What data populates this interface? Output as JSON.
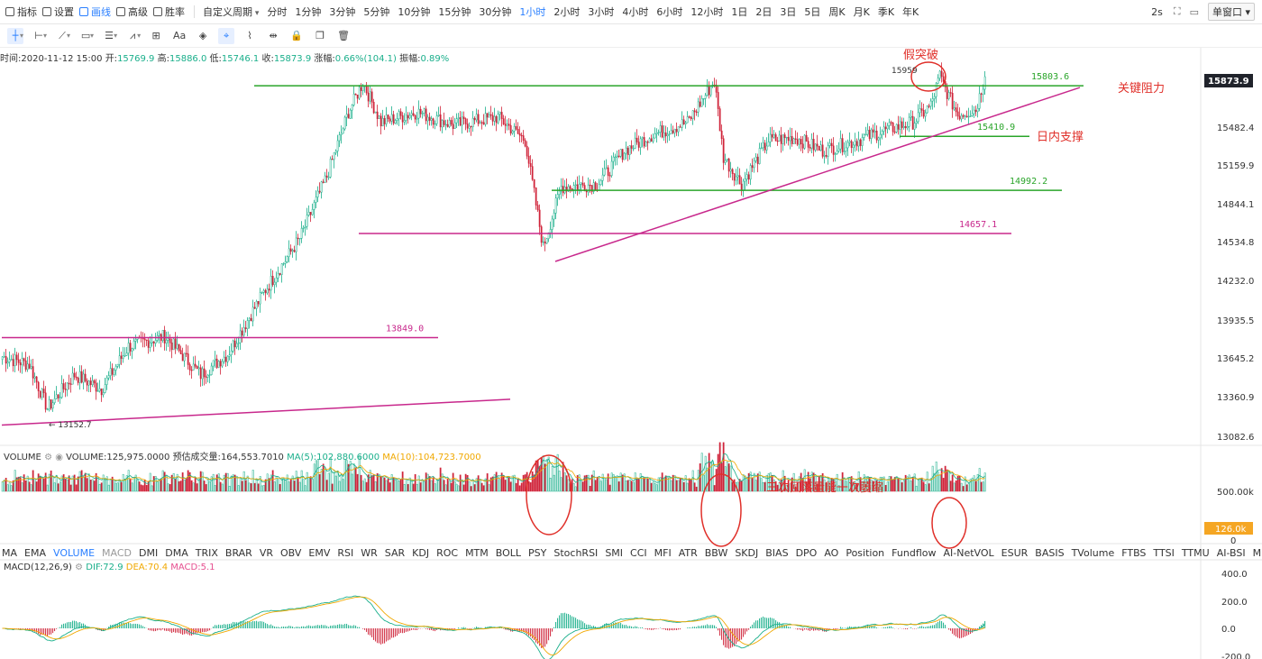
{
  "toolbar": {
    "items": [
      {
        "label": "指标",
        "icon": "indicator-icon"
      },
      {
        "label": "设置",
        "icon": "gear-icon"
      },
      {
        "label": "画线",
        "icon": "pen-icon",
        "active": true
      },
      {
        "label": "高级",
        "icon": "advanced-icon"
      },
      {
        "label": "胜率",
        "icon": "win-rate-icon"
      }
    ],
    "custom_period": "自定义周期",
    "periods": [
      "分时",
      "1分钟",
      "3分钟",
      "5分钟",
      "10分钟",
      "15分钟",
      "30分钟",
      "1小时",
      "2小时",
      "3小时",
      "4小时",
      "6小时",
      "12小时",
      "1日",
      "2日",
      "3日",
      "5日",
      "周K",
      "月K",
      "季K",
      "年K"
    ],
    "active_period": "1小时",
    "refresh": "2s",
    "window": "单窗口"
  },
  "drawing_tools": [
    "crosshair-icon",
    "horizontal-line-icon",
    "trend-line-icon",
    "rectangle-icon",
    "parallel-channel-icon",
    "fib-icon",
    "grid-tool-icon",
    "text-tool-icon",
    "fill-icon",
    "magnet-icon",
    "ruler-icon",
    "measure-icon",
    "lock-icon",
    "copy-icon",
    "delete-icon"
  ],
  "drawing_text": "Aa",
  "ohlc": {
    "time_label": "时间:",
    "time": "2020-11-12 15:00",
    "open_label": "开:",
    "open": "15769.9",
    "high_label": "高:",
    "high": "15886.0",
    "low_label": "低:",
    "low": "15746.1",
    "close_label": "收:",
    "close": "15873.9",
    "change_label": "涨幅:",
    "change": "0.66%(104.1)",
    "amp_label": "振幅:",
    "amp": "0.89%"
  },
  "annotations": {
    "false_break": "假突破",
    "key_resist": "关键阻力",
    "intraday_support": "日内支撑",
    "volume_note": "三次回落量能一次萎缩",
    "hi_label": "15959",
    "lo_label": "← 13152.7"
  },
  "levels": [
    {
      "value": "15803.6",
      "color": "#2aa52a"
    },
    {
      "value": "15410.9",
      "color": "#2aa52a"
    },
    {
      "value": "14992.2",
      "color": "#2aa52a"
    },
    {
      "value": "14657.1",
      "color": "#c8288c"
    },
    {
      "value": "13849.0",
      "color": "#c8288c"
    }
  ],
  "price_axis": [
    "15873.9",
    "15482.4",
    "15159.9",
    "14844.1",
    "14534.8",
    "14232.0",
    "13935.5",
    "13645.2",
    "13360.9",
    "13082.6"
  ],
  "last_price": "15873.9",
  "volume": {
    "title": "VOLUME",
    "volume_label": "VOLUME:",
    "volume": "125,975.0000",
    "est_label": "预估成交量:",
    "est": "164,553.7010",
    "ma5_label": "MA(5):",
    "ma5": "102,880.6000",
    "ma10_label": "MA(10):",
    "ma10": "104,723.7000",
    "axis": [
      "500.00k",
      "0"
    ],
    "last": "126.0k"
  },
  "indicators": [
    "MA",
    "EMA",
    "VOLUME",
    "MACD",
    "DMI",
    "DMA",
    "TRIX",
    "BRAR",
    "VR",
    "OBV",
    "EMV",
    "RSI",
    "WR",
    "SAR",
    "KDJ",
    "ROC",
    "MTM",
    "BOLL",
    "PSY",
    "StochRSI",
    "SMI",
    "CCI",
    "MFI",
    "ATR",
    "BBW",
    "SKDJ",
    "BIAS",
    "DPO",
    "AO",
    "Position",
    "Fundflow",
    "AI-NetVOL",
    "ESUR",
    "BASIS",
    "TVolume",
    "FTBS",
    "TTSI",
    "TTMU",
    "AI-BSI",
    "MLR"
  ],
  "active_indicator": "VOLUME",
  "muted_indicator": "MACD",
  "macd": {
    "title": "MACD(12,26,9)",
    "dif_label": "DIF:",
    "dif": "72.9",
    "dea_label": "DEA:",
    "dea": "70.4",
    "macd_label": "MACD:",
    "macd": "5.1",
    "axis": [
      "400.0",
      "200.0",
      "0.0",
      "-200.0"
    ]
  },
  "chart_data": {
    "type": "candlestick",
    "instrument_interval": "1小时",
    "y_range": [
      13000,
      16000
    ],
    "anchors": [
      [
        0,
        13700
      ],
      [
        15,
        13640
      ],
      [
        25,
        13300
      ],
      [
        40,
        13560
      ],
      [
        55,
        13450
      ],
      [
        70,
        13780
      ],
      [
        90,
        13860
      ],
      [
        110,
        13560
      ],
      [
        125,
        13720
      ],
      [
        145,
        14200
      ],
      [
        165,
        14620
      ],
      [
        180,
        15100
      ],
      [
        192,
        15600
      ],
      [
        200,
        15830
      ],
      [
        210,
        15520
      ],
      [
        230,
        15600
      ],
      [
        250,
        15500
      ],
      [
        275,
        15560
      ],
      [
        290,
        15380
      ],
      [
        300,
        14550
      ],
      [
        310,
        15020
      ],
      [
        330,
        15040
      ],
      [
        345,
        15300
      ],
      [
        360,
        15420
      ],
      [
        380,
        15520
      ],
      [
        395,
        15840
      ],
      [
        400,
        15250
      ],
      [
        410,
        15040
      ],
      [
        425,
        15380
      ],
      [
        440,
        15400
      ],
      [
        455,
        15300
      ],
      [
        470,
        15360
      ],
      [
        490,
        15460
      ],
      [
        505,
        15520
      ],
      [
        515,
        15650
      ],
      [
        520,
        15880
      ],
      [
        525,
        15720
      ],
      [
        530,
        15580
      ],
      [
        540,
        15620
      ],
      [
        545,
        15874
      ]
    ],
    "horizontal_lines": [
      {
        "value": 15803.6,
        "from_bar": 140,
        "to_bar": 600
      },
      {
        "value": 15410.9,
        "from_bar": 498,
        "to_bar": 570
      },
      {
        "value": 14992.2,
        "from_bar": 305,
        "to_bar": 588
      },
      {
        "value": 14657.1,
        "from_bar": 198,
        "to_bar": 560
      },
      {
        "value": 13849.0,
        "from_bar": 0,
        "to_bar": 242
      }
    ],
    "trend_lines": [
      {
        "from": [
          0,
          13170
        ],
        "to": [
          282,
          13370
        ]
      },
      {
        "from": [
          307,
          14440
        ],
        "to": [
          598,
          15790
        ]
      }
    ]
  }
}
